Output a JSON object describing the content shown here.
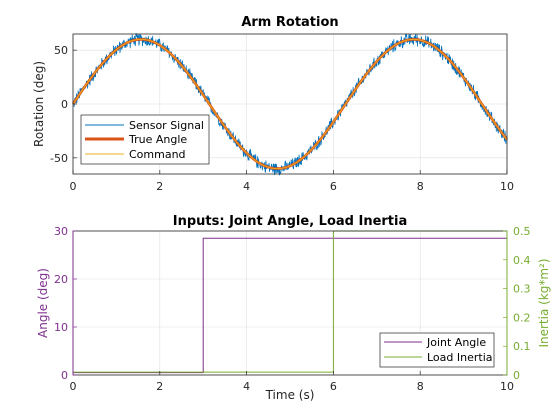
{
  "colors": {
    "figure_bg": "#ffffff",
    "axes_edge": "#262626",
    "grid": "#dfdfdf",
    "sensor": "#0072bd",
    "true_angle": "#d95319",
    "command": "#edb120",
    "joint_angle": "#7e2f8e",
    "load_inertia": "#77ac30"
  },
  "chart_data": [
    {
      "type": "line",
      "title": "Arm Rotation",
      "xlabel": "",
      "ylabel": "Rotation (deg)",
      "xlim": [
        0,
        10
      ],
      "ylim": [
        -65,
        65
      ],
      "xticks": [
        0,
        2,
        4,
        6,
        8,
        10
      ],
      "yticks": [
        -50,
        0,
        50
      ],
      "grid": true,
      "legend_location": "bottom-left",
      "signal_shape": {
        "amplitude_deg": 60,
        "period_s": 6.28,
        "start_value_deg": 0,
        "peak_1": [
          1.6,
          60
        ],
        "trough_1": [
          4.7,
          -60
        ],
        "peak_2": [
          7.85,
          60
        ],
        "sensor_noise_peak_deg": 7
      },
      "series": [
        {
          "name": "Sensor Signal",
          "style": "noisy",
          "color_key": "sensor"
        },
        {
          "name": "True Angle",
          "style": "thick",
          "color_key": "true_angle"
        },
        {
          "name": "Command",
          "style": "thin",
          "color_key": "command"
        }
      ]
    },
    {
      "type": "line",
      "title": "Inputs: Joint Angle, Load Inertia",
      "xlabel": "Time (s)",
      "ylabel": "Angle (deg)",
      "y2label": "Inertia (kg*m²)",
      "xlim": [
        0,
        10
      ],
      "ylim": [
        0,
        30
      ],
      "y2lim": [
        0,
        0.5
      ],
      "xticks": [
        0,
        2,
        4,
        6,
        8,
        10
      ],
      "yticks": [
        0,
        10,
        20,
        30
      ],
      "y2ticks": [
        "0",
        "0.1",
        "0.2",
        "0.3",
        "0.4",
        "0.5"
      ],
      "grid": true,
      "legend_location": "bottom-right",
      "series": [
        {
          "name": "Joint Angle",
          "axis": "left",
          "color_key": "joint_angle",
          "x": [
            0,
            3,
            3,
            10
          ],
          "y": [
            0.5,
            0.5,
            28.5,
            28.5
          ]
        },
        {
          "name": "Load Inertia",
          "axis": "right",
          "color_key": "load_inertia",
          "x": [
            0,
            6,
            6,
            10
          ],
          "y": [
            0.01,
            0.01,
            0.5,
            0.5
          ]
        }
      ]
    }
  ]
}
